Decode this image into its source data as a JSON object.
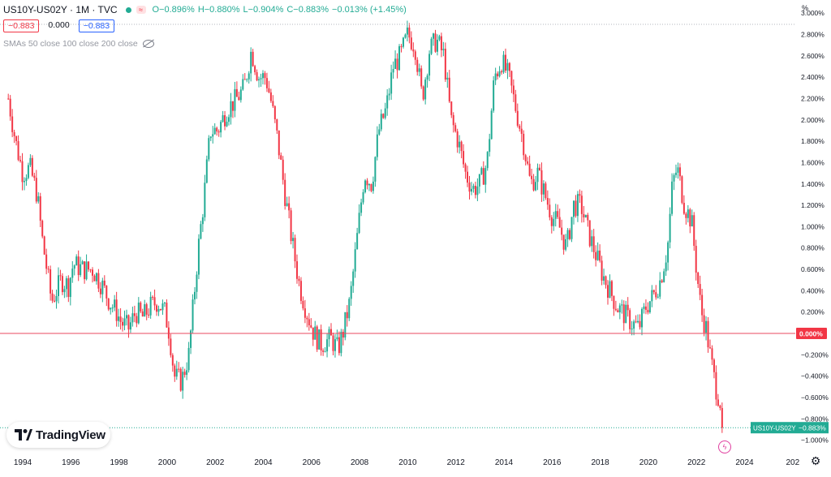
{
  "header": {
    "symbol": "US10Y-US02Y · 1M · TVC",
    "open": "O−0.896%",
    "high": "H−0.880%",
    "low": "L−0.904%",
    "close": "C−0.883%",
    "change": "−0.013% (+1.45%)",
    "sell_value": "−0.883",
    "spread_value": "0.000",
    "buy_value": "−0.883",
    "indicator_label": "SMAs 50 close 100 close 200 close"
  },
  "branding": {
    "logo_text": "TradingView"
  },
  "price_labels": {
    "current_symbol": "US10Y-US02Y",
    "current_value": "−0.883%",
    "zero_value": "0.000%"
  },
  "colors": {
    "up": "#22ab94",
    "down": "#f23645",
    "zero_line": "#e84a5f",
    "accent_blue": "#2962ff"
  },
  "chart_data": {
    "type": "candlestick",
    "title": "US10Y-US02Y · 1M · TVC",
    "ylabel": "%",
    "ylim": [
      -1.0,
      3.0
    ],
    "y_ticks": [
      "3.000%",
      "2.800%",
      "2.600%",
      "2.400%",
      "2.200%",
      "2.000%",
      "1.800%",
      "1.600%",
      "1.400%",
      "1.200%",
      "1.000%",
      "0.800%",
      "0.600%",
      "0.400%",
      "0.200%",
      "−0.200%",
      "−0.400%",
      "−0.600%",
      "−0.800%",
      "−1.000%"
    ],
    "x_ticks": [
      "1994",
      "1996",
      "1998",
      "2000",
      "2002",
      "2004",
      "2006",
      "2008",
      "2010",
      "2012",
      "2014",
      "2016",
      "2018",
      "2020",
      "2022",
      "2024",
      "202"
    ],
    "xlim": [
      1993.3,
      2026.0
    ],
    "series": [
      {
        "name": "US10Y-US02Y",
        "points": [
          [
            1993.4,
            2.2
          ],
          [
            1993.7,
            1.8
          ],
          [
            1994.0,
            1.5
          ],
          [
            1994.3,
            1.55
          ],
          [
            1994.6,
            1.3
          ],
          [
            1994.8,
            0.9
          ],
          [
            1995.0,
            0.6
          ],
          [
            1995.2,
            0.3
          ],
          [
            1995.4,
            0.4
          ],
          [
            1995.6,
            0.5
          ],
          [
            1995.9,
            0.45
          ],
          [
            1996.1,
            0.65
          ],
          [
            1996.5,
            0.6
          ],
          [
            1996.9,
            0.6
          ],
          [
            1997.3,
            0.45
          ],
          [
            1997.6,
            0.3
          ],
          [
            1997.9,
            0.2
          ],
          [
            1998.1,
            0.1
          ],
          [
            1998.4,
            0.05
          ],
          [
            1998.7,
            0.2
          ],
          [
            1999.0,
            0.15
          ],
          [
            1999.3,
            0.25
          ],
          [
            1999.6,
            0.3
          ],
          [
            1999.9,
            0.2
          ],
          [
            2000.1,
            0.0
          ],
          [
            2000.3,
            -0.4
          ],
          [
            2000.6,
            -0.45
          ],
          [
            2000.9,
            -0.2
          ],
          [
            2001.1,
            0.3
          ],
          [
            2001.3,
            0.8
          ],
          [
            2001.5,
            1.2
          ],
          [
            2001.8,
            1.9
          ],
          [
            2002.1,
            1.9
          ],
          [
            2002.5,
            2.1
          ],
          [
            2002.9,
            2.2
          ],
          [
            2003.2,
            2.3
          ],
          [
            2003.5,
            2.65
          ],
          [
            2003.8,
            2.4
          ],
          [
            2004.1,
            2.4
          ],
          [
            2004.3,
            2.2
          ],
          [
            2004.6,
            1.8
          ],
          [
            2004.9,
            1.3
          ],
          [
            2005.2,
            0.85
          ],
          [
            2005.5,
            0.45
          ],
          [
            2005.8,
            0.2
          ],
          [
            2006.1,
            0.0
          ],
          [
            2006.4,
            -0.1
          ],
          [
            2006.8,
            -0.05
          ],
          [
            2007.1,
            -0.15
          ],
          [
            2007.3,
            0.0
          ],
          [
            2007.6,
            0.3
          ],
          [
            2007.9,
            0.9
          ],
          [
            2008.2,
            1.5
          ],
          [
            2008.5,
            1.4
          ],
          [
            2008.8,
            1.9
          ],
          [
            2009.1,
            2.1
          ],
          [
            2009.4,
            2.5
          ],
          [
            2009.7,
            2.6
          ],
          [
            2010.0,
            2.8
          ],
          [
            2010.3,
            2.7
          ],
          [
            2010.6,
            2.2
          ],
          [
            2010.9,
            2.65
          ],
          [
            2011.2,
            2.75
          ],
          [
            2011.5,
            2.6
          ],
          [
            2011.8,
            2.0
          ],
          [
            2012.1,
            1.8
          ],
          [
            2012.4,
            1.5
          ],
          [
            2012.7,
            1.35
          ],
          [
            2013.0,
            1.4
          ],
          [
            2013.3,
            1.6
          ],
          [
            2013.6,
            2.4
          ],
          [
            2013.9,
            2.55
          ],
          [
            2014.2,
            2.4
          ],
          [
            2014.5,
            2.1
          ],
          [
            2014.8,
            1.8
          ],
          [
            2015.1,
            1.4
          ],
          [
            2015.4,
            1.5
          ],
          [
            2015.7,
            1.3
          ],
          [
            2016.0,
            1.1
          ],
          [
            2016.3,
            1.0
          ],
          [
            2016.6,
            0.8
          ],
          [
            2016.9,
            1.2
          ],
          [
            2017.2,
            1.2
          ],
          [
            2017.5,
            0.95
          ],
          [
            2017.8,
            0.75
          ],
          [
            2018.1,
            0.55
          ],
          [
            2018.4,
            0.4
          ],
          [
            2018.7,
            0.25
          ],
          [
            2019.0,
            0.18
          ],
          [
            2019.3,
            0.1
          ],
          [
            2019.6,
            0.05
          ],
          [
            2019.9,
            0.25
          ],
          [
            2020.2,
            0.35
          ],
          [
            2020.5,
            0.5
          ],
          [
            2020.8,
            0.8
          ],
          [
            2021.0,
            1.4
          ],
          [
            2021.2,
            1.55
          ],
          [
            2021.5,
            1.2
          ],
          [
            2021.8,
            1.05
          ],
          [
            2022.0,
            0.6
          ],
          [
            2022.2,
            0.2
          ],
          [
            2022.4,
            0.05
          ],
          [
            2022.6,
            -0.25
          ],
          [
            2022.8,
            -0.5
          ],
          [
            2023.0,
            -0.65
          ],
          [
            2023.1,
            -0.883
          ]
        ]
      }
    ],
    "reference_lines": [
      {
        "y": 0.0,
        "label": "0.000%"
      }
    ],
    "last_value": -0.883,
    "grid": false
  }
}
